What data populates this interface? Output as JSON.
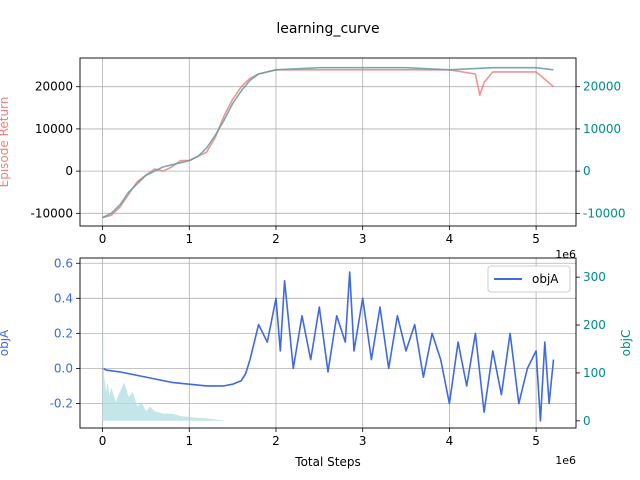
{
  "title": "learning_curve",
  "colors": {
    "episode_return": "#f08080",
    "teal_series": "#5f9ea0",
    "right_axis_top": "#008b8b",
    "objA": "#4169e1",
    "objC": "#008b8b",
    "objC_fill": "#b0dde0",
    "grid": "#b0b0b0"
  },
  "chart_data": [
    {
      "type": "line",
      "xlabel": "",
      "x_offset_label": "1e6",
      "ylabel": "Episode Return",
      "ylabel_right": "",
      "xlim": [
        -0.26,
        5.46
      ],
      "ylim": [
        -13000,
        26800
      ],
      "ylim_right": [
        -13000,
        26800
      ],
      "xticks": [
        "0",
        "1",
        "2",
        "3",
        "4",
        "5"
      ],
      "yticks": [
        "-10000",
        "0",
        "10000",
        "20000"
      ],
      "yticks_right": [
        "-10000",
        "0",
        "10000",
        "20000"
      ],
      "grid": true,
      "series": [
        {
          "name": "",
          "axis": "left",
          "x": [
            0.0,
            0.1,
            0.2,
            0.3,
            0.4,
            0.5,
            0.6,
            0.7,
            0.8,
            0.9,
            1.0,
            1.1,
            1.2,
            1.3,
            1.4,
            1.5,
            1.6,
            1.7,
            1.8,
            1.9,
            2.0,
            2.2,
            2.5,
            3.0,
            3.5,
            4.0,
            4.3,
            4.35,
            4.4,
            4.5,
            5.0,
            5.2
          ],
          "y": [
            -11000,
            -10500,
            -8500,
            -5500,
            -2500,
            -1000,
            500,
            0,
            1000,
            2500,
            2500,
            3500,
            4500,
            8000,
            13000,
            17000,
            20000,
            22000,
            23000,
            23500,
            24000,
            24000,
            24000,
            24000,
            24000,
            24000,
            23000,
            18000,
            21000,
            23500,
            23500,
            20000
          ]
        },
        {
          "name": "",
          "axis": "right",
          "x": [
            0.0,
            0.1,
            0.2,
            0.3,
            0.4,
            0.5,
            0.6,
            0.7,
            0.8,
            0.9,
            1.0,
            1.1,
            1.2,
            1.3,
            1.4,
            1.5,
            1.6,
            1.7,
            1.8,
            1.9,
            2.0,
            2.5,
            3.0,
            3.5,
            4.0,
            4.5,
            5.0,
            5.2
          ],
          "y": [
            -11000,
            -10000,
            -8000,
            -5000,
            -3000,
            -1000,
            0,
            1000,
            1500,
            2000,
            2500,
            3500,
            5500,
            8500,
            12000,
            16000,
            19000,
            21500,
            23000,
            23500,
            24000,
            24500,
            24500,
            24500,
            24000,
            24500,
            24500,
            24000
          ]
        }
      ]
    },
    {
      "type": "line",
      "xlabel": "Total Steps",
      "x_offset_label": "1e6",
      "ylabel": "objA",
      "ylabel_right": "objC",
      "xlim": [
        -0.26,
        5.46
      ],
      "ylim": [
        -0.34,
        0.63
      ],
      "ylim_right": [
        -15,
        340
      ],
      "xticks": [
        "0",
        "1",
        "2",
        "3",
        "4",
        "5"
      ],
      "yticks": [
        "-0.2",
        "0.0",
        "0.2",
        "0.4",
        "0.6"
      ],
      "yticks_right": [
        "0",
        "100",
        "200",
        "300"
      ],
      "grid": true,
      "legend": {
        "placement": "top-right",
        "entries": [
          "objA"
        ]
      },
      "series": [
        {
          "name": "objA",
          "axis": "left",
          "x": [
            0.0,
            0.05,
            0.2,
            0.4,
            0.6,
            0.8,
            1.0,
            1.2,
            1.4,
            1.5,
            1.6,
            1.65,
            1.7,
            1.8,
            1.9,
            2.0,
            2.05,
            2.1,
            2.2,
            2.3,
            2.4,
            2.5,
            2.6,
            2.7,
            2.8,
            2.85,
            2.9,
            3.0,
            3.1,
            3.2,
            3.3,
            3.4,
            3.5,
            3.6,
            3.7,
            3.8,
            3.9,
            4.0,
            4.1,
            4.2,
            4.3,
            4.4,
            4.5,
            4.6,
            4.7,
            4.8,
            4.9,
            5.0,
            5.05,
            5.1,
            5.15,
            5.2
          ],
          "y": [
            0.0,
            -0.01,
            -0.02,
            -0.04,
            -0.06,
            -0.08,
            -0.09,
            -0.1,
            -0.1,
            -0.09,
            -0.07,
            -0.03,
            0.05,
            0.25,
            0.15,
            0.4,
            0.1,
            0.5,
            0.0,
            0.3,
            0.05,
            0.35,
            -0.02,
            0.3,
            0.15,
            0.55,
            0.1,
            0.4,
            0.05,
            0.35,
            0.0,
            0.3,
            0.1,
            0.25,
            -0.05,
            0.2,
            0.05,
            -0.2,
            0.15,
            -0.1,
            0.2,
            -0.25,
            0.1,
            -0.15,
            0.2,
            -0.2,
            0.0,
            0.1,
            -0.3,
            0.15,
            -0.2,
            0.05
          ]
        },
        {
          "name": "",
          "axis": "right",
          "type": "area",
          "x": [
            0.0,
            0.005,
            0.01,
            0.02,
            0.04,
            0.06,
            0.08,
            0.1,
            0.15,
            0.2,
            0.25,
            0.3,
            0.35,
            0.4,
            0.45,
            0.5,
            0.55,
            0.6,
            0.7,
            0.8,
            0.9,
            1.0,
            1.1,
            1.2,
            1.3,
            1.4
          ],
          "y": [
            0,
            320,
            120,
            90,
            60,
            80,
            50,
            70,
            40,
            60,
            80,
            50,
            60,
            30,
            40,
            20,
            30,
            20,
            15,
            15,
            10,
            8,
            6,
            5,
            3,
            0
          ]
        }
      ]
    }
  ]
}
